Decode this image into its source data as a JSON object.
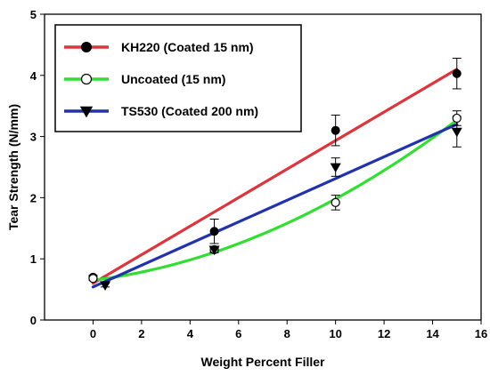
{
  "chart_data": {
    "type": "scatter",
    "title": "",
    "xlabel": "Weight Percent Filler",
    "ylabel": "Tear Strength (N/mm)",
    "xlim": [
      -2,
      16
    ],
    "ylim": [
      0,
      5
    ],
    "xticks": [
      0,
      2,
      4,
      6,
      8,
      10,
      12,
      14,
      16
    ],
    "yticks": [
      0,
      1,
      2,
      3,
      4,
      5
    ],
    "grid": false,
    "legend_position": "top-left",
    "series": [
      {
        "name": "KH220 (Coated 15 nm)",
        "color": "#d9363e",
        "marker": "filled-circle",
        "points": [
          {
            "x": 0,
            "y": 0.7,
            "err": 0.03
          },
          {
            "x": 5,
            "y": 1.45,
            "err": 0.2
          },
          {
            "x": 10,
            "y": 3.1,
            "err": 0.25
          },
          {
            "x": 15,
            "y": 4.03,
            "err": 0.25
          }
        ],
        "fit": "linear",
        "fit_points": [
          [
            0,
            0.6
          ],
          [
            15,
            4.1
          ]
        ]
      },
      {
        "name": "Uncoated (15 nm)",
        "color": "#33dd33",
        "marker": "open-circle",
        "points": [
          {
            "x": 0,
            "y": 0.68,
            "err": 0.03
          },
          {
            "x": 5,
            "y": 1.15,
            "err": 0.05
          },
          {
            "x": 10,
            "y": 1.92,
            "err": 0.12
          },
          {
            "x": 15,
            "y": 3.3,
            "err": 0.12
          }
        ],
        "fit": "quadratic",
        "fit_coeffs": [
          0.65,
          0.05,
          0.0083
        ],
        "fit_range": [
          0,
          15
        ]
      },
      {
        "name": "TS530 (Coated 200 nm)",
        "color": "#2233aa",
        "marker": "filled-triangle-down",
        "points": [
          {
            "x": 0.5,
            "y": 0.57,
            "err": 0.03
          },
          {
            "x": 5,
            "y": 1.15,
            "err": 0.03
          },
          {
            "x": 10,
            "y": 2.5,
            "err": 0.15
          },
          {
            "x": 15,
            "y": 3.08,
            "err": 0.25
          }
        ],
        "fit": "linear",
        "fit_points": [
          [
            0,
            0.54
          ],
          [
            15,
            3.2
          ]
        ]
      }
    ]
  }
}
